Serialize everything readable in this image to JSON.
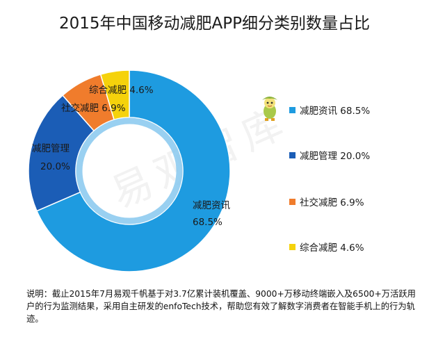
{
  "chart_data": {
    "type": "pie",
    "title": "2015年中国移动减肥APP细分类别数量占比",
    "categories": [
      "减肥资讯",
      "减肥管理",
      "社交减肥",
      "综合减肥"
    ],
    "values": [
      68.5,
      20.0,
      6.9,
      4.6
    ],
    "unit": "%",
    "value_labels": [
      "68.5%",
      "20.0%",
      "6.9%",
      "4.6%"
    ],
    "colors": [
      "#1E9BE0",
      "#1B5DB6",
      "#F07C2C",
      "#F5D20C"
    ],
    "legend_position": "right",
    "donut": true
  },
  "note": "说明：截止2015年7月易观千帆基于对3.7亿累计装机覆盖、9000+万移动终端嵌入及6500+万活跃用户的行为监测结果，采用自主研发的enfoTech技术，帮助您有效了解数字消费者在智能手机上的行为轨迹。",
  "watermark": "易观智库",
  "mascot_icon": "mascot-icon"
}
